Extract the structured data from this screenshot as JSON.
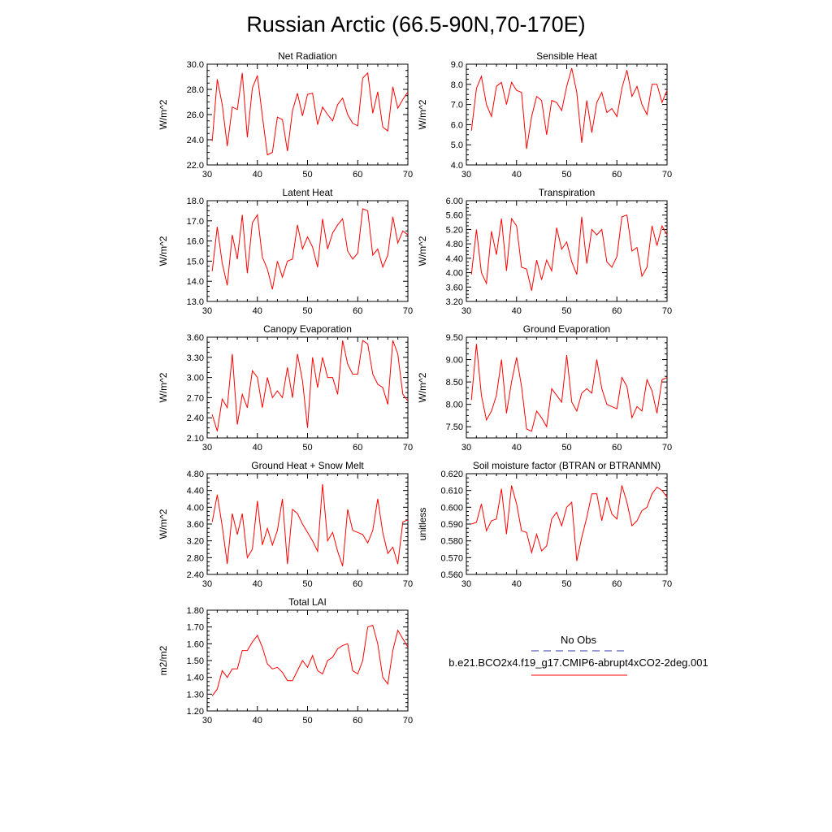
{
  "figure": {
    "title": "Russian Arctic (66.5-90N,70-170E)"
  },
  "legend": {
    "entries": [
      {
        "label": "No Obs",
        "color": "#3333aa",
        "dash": "dashed"
      },
      {
        "label": "b.e21.BCO2x4.f19_g17.CMIP6-abrupt4xCO2-2deg.001",
        "color": "#ff0000",
        "dash": "solid"
      }
    ]
  },
  "chart_data": [
    {
      "type": "line",
      "title": "Net Radiation",
      "ylabel": "W/m^2",
      "xlim": [
        30,
        70
      ],
      "ylim": [
        22.0,
        30.0
      ],
      "xticks": [
        30,
        40,
        50,
        60,
        70
      ],
      "yticks": [
        "22.0",
        "24.0",
        "26.0",
        "28.0",
        "30.0"
      ],
      "series": [
        {
          "color": "#ff0000",
          "x": [
            31,
            32,
            33,
            34,
            35,
            36,
            37,
            38,
            39,
            40,
            41,
            42,
            43,
            44,
            45,
            46,
            47,
            48,
            49,
            50,
            51,
            52,
            53,
            54,
            55,
            56,
            57,
            58,
            59,
            60,
            61,
            62,
            63,
            64,
            65,
            66,
            67,
            68,
            69,
            70
          ],
          "y": [
            23.9,
            28.8,
            26.8,
            23.5,
            26.6,
            26.4,
            29.3,
            24.2,
            28.1,
            29.1,
            25.9,
            22.8,
            23.0,
            25.8,
            25.6,
            23.1,
            26.3,
            27.7,
            25.9,
            27.6,
            27.7,
            25.2,
            26.6,
            26.0,
            25.5,
            26.8,
            27.3,
            26.0,
            25.3,
            25.1,
            28.9,
            29.3,
            26.1,
            27.8,
            25.0,
            24.7,
            28.2,
            26.5,
            27.2,
            27.8
          ]
        }
      ]
    },
    {
      "type": "line",
      "title": "Sensible Heat",
      "ylabel": "W/m^2",
      "xlim": [
        30,
        70
      ],
      "ylim": [
        4.0,
        9.0
      ],
      "xticks": [
        30,
        40,
        50,
        60,
        70
      ],
      "yticks": [
        "4.0",
        "5.0",
        "6.0",
        "7.0",
        "8.0",
        "9.0"
      ],
      "series": [
        {
          "color": "#ff0000",
          "x": [
            31,
            32,
            33,
            34,
            35,
            36,
            37,
            38,
            39,
            40,
            41,
            42,
            43,
            44,
            45,
            46,
            47,
            48,
            49,
            50,
            51,
            52,
            53,
            54,
            55,
            56,
            57,
            58,
            59,
            60,
            61,
            62,
            63,
            64,
            65,
            66,
            67,
            68,
            69,
            70
          ],
          "y": [
            5.7,
            7.8,
            8.4,
            7.0,
            6.4,
            7.9,
            8.1,
            7.0,
            8.1,
            7.7,
            7.6,
            4.8,
            6.4,
            7.4,
            7.2,
            5.5,
            7.2,
            7.1,
            6.7,
            7.9,
            8.8,
            7.6,
            5.1,
            7.2,
            5.6,
            7.1,
            7.6,
            6.6,
            6.8,
            6.4,
            7.8,
            8.7,
            7.4,
            7.9,
            7.0,
            6.5,
            8.0,
            8.0,
            7.1,
            7.7
          ]
        }
      ]
    },
    {
      "type": "line",
      "title": "Latent Heat",
      "ylabel": "W/m^2",
      "xlim": [
        30,
        70
      ],
      "ylim": [
        13.0,
        18.0
      ],
      "xticks": [
        30,
        40,
        50,
        60,
        70
      ],
      "yticks": [
        "13.0",
        "14.0",
        "15.0",
        "16.0",
        "17.0",
        "18.0"
      ],
      "series": [
        {
          "color": "#ff0000",
          "x": [
            31,
            32,
            33,
            34,
            35,
            36,
            37,
            38,
            39,
            40,
            41,
            42,
            43,
            44,
            45,
            46,
            47,
            48,
            49,
            50,
            51,
            52,
            53,
            54,
            55,
            56,
            57,
            58,
            59,
            60,
            61,
            62,
            63,
            64,
            65,
            66,
            67,
            68,
            69,
            70
          ],
          "y": [
            14.5,
            16.7,
            14.9,
            13.8,
            16.3,
            15.1,
            17.3,
            14.4,
            16.9,
            17.3,
            15.2,
            14.6,
            13.6,
            15.0,
            14.2,
            15.0,
            15.1,
            16.8,
            15.6,
            16.2,
            15.7,
            14.7,
            17.1,
            15.6,
            16.4,
            16.8,
            17.1,
            15.5,
            15.1,
            15.4,
            17.6,
            17.5,
            15.3,
            15.6,
            14.7,
            15.3,
            17.2,
            15.9,
            16.5,
            16.3
          ]
        }
      ]
    },
    {
      "type": "line",
      "title": "Transpiration",
      "ylabel": "W/m^2",
      "xlim": [
        30,
        70
      ],
      "ylim": [
        3.2,
        6.0
      ],
      "xticks": [
        30,
        40,
        50,
        60,
        70
      ],
      "yticks": [
        "3.20",
        "3.60",
        "4.00",
        "4.40",
        "4.80",
        "5.20",
        "5.60",
        "6.00"
      ],
      "series": [
        {
          "color": "#ff0000",
          "x": [
            31,
            32,
            33,
            34,
            35,
            36,
            37,
            38,
            39,
            40,
            41,
            42,
            43,
            44,
            45,
            46,
            47,
            48,
            49,
            50,
            51,
            52,
            53,
            54,
            55,
            56,
            57,
            58,
            59,
            60,
            61,
            62,
            63,
            64,
            65,
            66,
            67,
            68,
            69,
            70
          ],
          "y": [
            3.95,
            5.2,
            4.0,
            3.7,
            5.15,
            4.5,
            5.5,
            4.05,
            5.5,
            5.3,
            4.15,
            4.1,
            3.5,
            4.35,
            3.8,
            4.35,
            4.05,
            5.25,
            4.65,
            4.85,
            4.3,
            3.95,
            5.55,
            4.25,
            5.2,
            5.05,
            5.2,
            4.3,
            4.15,
            4.45,
            5.55,
            5.6,
            4.6,
            4.7,
            3.9,
            4.15,
            5.3,
            4.75,
            5.3,
            5.05
          ]
        }
      ]
    },
    {
      "type": "line",
      "title": "Canopy Evaporation",
      "ylabel": "W/m^2",
      "xlim": [
        30,
        70
      ],
      "ylim": [
        2.1,
        3.6
      ],
      "xticks": [
        30,
        40,
        50,
        60,
        70
      ],
      "yticks": [
        "2.10",
        "2.40",
        "2.70",
        "3.00",
        "3.30",
        "3.60"
      ],
      "series": [
        {
          "color": "#ff0000",
          "x": [
            31,
            32,
            33,
            34,
            35,
            36,
            37,
            38,
            39,
            40,
            41,
            42,
            43,
            44,
            45,
            46,
            47,
            48,
            49,
            50,
            51,
            52,
            53,
            54,
            55,
            56,
            57,
            58,
            59,
            60,
            61,
            62,
            63,
            64,
            65,
            66,
            67,
            68,
            69,
            70
          ],
          "y": [
            2.45,
            2.2,
            2.68,
            2.55,
            3.35,
            2.3,
            2.75,
            2.55,
            3.1,
            3.0,
            2.55,
            3.0,
            2.7,
            2.8,
            2.7,
            3.15,
            2.7,
            3.35,
            2.95,
            2.25,
            3.3,
            2.85,
            3.3,
            3.0,
            3.0,
            2.75,
            3.55,
            3.2,
            3.05,
            3.05,
            3.55,
            3.5,
            3.05,
            2.9,
            2.85,
            2.6,
            3.55,
            3.35,
            2.75,
            2.65
          ]
        }
      ]
    },
    {
      "type": "line",
      "title": "Ground Evaporation",
      "ylabel": "W/m^2",
      "xlim": [
        30,
        70
      ],
      "ylim": [
        7.25,
        9.5
      ],
      "xticks": [
        30,
        40,
        50,
        60,
        70
      ],
      "yticks": [
        "7.50",
        "8.00",
        "8.50",
        "9.00",
        "9.50"
      ],
      "series": [
        {
          "color": "#ff0000",
          "x": [
            31,
            32,
            33,
            34,
            35,
            36,
            37,
            38,
            39,
            40,
            41,
            42,
            43,
            44,
            45,
            46,
            47,
            48,
            49,
            50,
            51,
            52,
            53,
            54,
            55,
            56,
            57,
            58,
            59,
            60,
            61,
            62,
            63,
            64,
            65,
            66,
            67,
            68,
            69,
            70
          ],
          "y": [
            8.1,
            9.35,
            8.2,
            7.65,
            7.85,
            8.2,
            9.0,
            7.8,
            8.5,
            9.05,
            8.4,
            7.45,
            7.4,
            7.85,
            7.7,
            7.5,
            8.35,
            8.2,
            8.05,
            9.1,
            8.05,
            7.85,
            8.25,
            8.35,
            8.25,
            9.0,
            8.35,
            8.0,
            7.95,
            7.9,
            8.6,
            8.4,
            7.7,
            7.95,
            7.85,
            8.55,
            8.3,
            7.8,
            8.55,
            8.6
          ]
        }
      ]
    },
    {
      "type": "line",
      "title": "Ground Heat + Snow Melt",
      "ylabel": "W/m^2",
      "xlim": [
        30,
        70
      ],
      "ylim": [
        2.4,
        4.8
      ],
      "xticks": [
        30,
        40,
        50,
        60,
        70
      ],
      "yticks": [
        "2.40",
        "2.80",
        "3.20",
        "3.60",
        "4.00",
        "4.40",
        "4.80"
      ],
      "series": [
        {
          "color": "#ff0000",
          "x": [
            31,
            32,
            33,
            34,
            35,
            36,
            37,
            38,
            39,
            40,
            41,
            42,
            43,
            44,
            45,
            46,
            47,
            48,
            49,
            50,
            51,
            52,
            53,
            54,
            55,
            56,
            57,
            58,
            59,
            60,
            61,
            62,
            63,
            64,
            65,
            66,
            67,
            68,
            69,
            70
          ],
          "y": [
            3.65,
            4.3,
            3.55,
            2.65,
            3.85,
            3.35,
            3.85,
            2.8,
            3.0,
            4.15,
            3.1,
            3.5,
            3.1,
            3.45,
            4.2,
            2.65,
            3.95,
            3.85,
            3.6,
            3.4,
            3.2,
            2.95,
            4.55,
            3.2,
            3.4,
            2.95,
            2.6,
            3.95,
            3.45,
            3.4,
            3.35,
            3.15,
            3.45,
            4.2,
            3.4,
            2.9,
            3.05,
            2.65,
            3.65,
            3.7
          ]
        }
      ]
    },
    {
      "type": "line",
      "title": "Soil moisture factor (BTRAN or BTRANMN)",
      "ylabel": "unitless",
      "xlim": [
        30,
        70
      ],
      "ylim": [
        0.56,
        0.62
      ],
      "xticks": [
        30,
        40,
        50,
        60,
        70
      ],
      "yticks": [
        "0.560",
        "0.570",
        "0.580",
        "0.590",
        "0.600",
        "0.610",
        "0.620"
      ],
      "series": [
        {
          "color": "#ff0000",
          "x": [
            31,
            32,
            33,
            34,
            35,
            36,
            37,
            38,
            39,
            40,
            41,
            42,
            43,
            44,
            45,
            46,
            47,
            48,
            49,
            50,
            51,
            52,
            53,
            54,
            55,
            56,
            57,
            58,
            59,
            60,
            61,
            62,
            63,
            64,
            65,
            66,
            67,
            68,
            69,
            70
          ],
          "y": [
            0.59,
            0.591,
            0.602,
            0.586,
            0.592,
            0.593,
            0.611,
            0.584,
            0.613,
            0.602,
            0.586,
            0.585,
            0.573,
            0.584,
            0.574,
            0.577,
            0.593,
            0.597,
            0.589,
            0.6,
            0.603,
            0.568,
            0.582,
            0.594,
            0.608,
            0.608,
            0.592,
            0.606,
            0.596,
            0.593,
            0.613,
            0.603,
            0.589,
            0.592,
            0.598,
            0.6,
            0.608,
            0.612,
            0.61,
            0.606
          ]
        }
      ]
    },
    {
      "type": "line",
      "title": "Total LAI",
      "ylabel": "m2/m2",
      "xlim": [
        30,
        70
      ],
      "ylim": [
        1.2,
        1.8
      ],
      "xticks": [
        30,
        40,
        50,
        60,
        70
      ],
      "yticks": [
        "1.20",
        "1.30",
        "1.40",
        "1.50",
        "1.60",
        "1.70",
        "1.80"
      ],
      "series": [
        {
          "color": "#ff0000",
          "x": [
            31,
            32,
            33,
            34,
            35,
            36,
            37,
            38,
            39,
            40,
            41,
            42,
            43,
            44,
            45,
            46,
            47,
            48,
            49,
            50,
            51,
            52,
            53,
            54,
            55,
            56,
            57,
            58,
            59,
            60,
            61,
            62,
            63,
            64,
            65,
            66,
            67,
            68,
            69,
            70
          ],
          "y": [
            1.29,
            1.33,
            1.44,
            1.4,
            1.45,
            1.45,
            1.56,
            1.56,
            1.61,
            1.65,
            1.58,
            1.48,
            1.45,
            1.46,
            1.43,
            1.38,
            1.38,
            1.44,
            1.5,
            1.46,
            1.53,
            1.44,
            1.42,
            1.5,
            1.52,
            1.57,
            1.59,
            1.6,
            1.44,
            1.42,
            1.5,
            1.7,
            1.71,
            1.6,
            1.4,
            1.36,
            1.56,
            1.68,
            1.63,
            1.58
          ]
        }
      ]
    }
  ]
}
